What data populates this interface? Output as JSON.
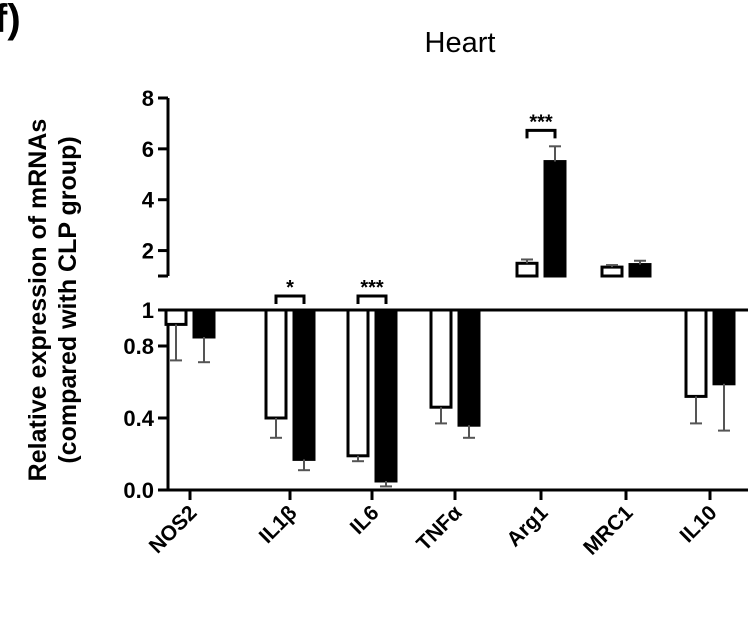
{
  "panel_label": "f)",
  "chart_data": {
    "type": "bar",
    "title": "Heart",
    "ylabel_lines": [
      "Relative expression of mRNAs",
      "(compared with CLP group)"
    ],
    "categories": [
      "NOS2",
      "IL1β",
      "IL6",
      "TNFα",
      "Arg1",
      "MRC1",
      "IL10"
    ],
    "series": [
      {
        "color": "#ffffff",
        "values": [
          0.92,
          0.4,
          0.19,
          0.46,
          1.5,
          1.35,
          0.52
        ],
        "errors": [
          0.2,
          0.11,
          0.03,
          0.09,
          0.15,
          0.08,
          0.15
        ]
      },
      {
        "color": "#000000",
        "values": [
          0.85,
          0.17,
          0.05,
          0.36,
          5.5,
          1.45,
          0.59
        ],
        "errors": [
          0.14,
          0.06,
          0.03,
          0.07,
          0.6,
          0.15,
          0.26
        ]
      }
    ],
    "y_axis_break": true,
    "ylim_lower": [
      0,
      1
    ],
    "ylim_upper": [
      1,
      8
    ],
    "yticks_lower": [
      "0.0",
      "0.4",
      "0.8",
      "1"
    ],
    "yticks_upper": [
      "2",
      "4",
      "6",
      "8"
    ],
    "significance": [
      {
        "category": "IL1β",
        "label": "*"
      },
      {
        "category": "IL6",
        "label": "***"
      },
      {
        "category": "Arg1",
        "label": "***"
      }
    ],
    "grid": false,
    "legend": "none"
  }
}
